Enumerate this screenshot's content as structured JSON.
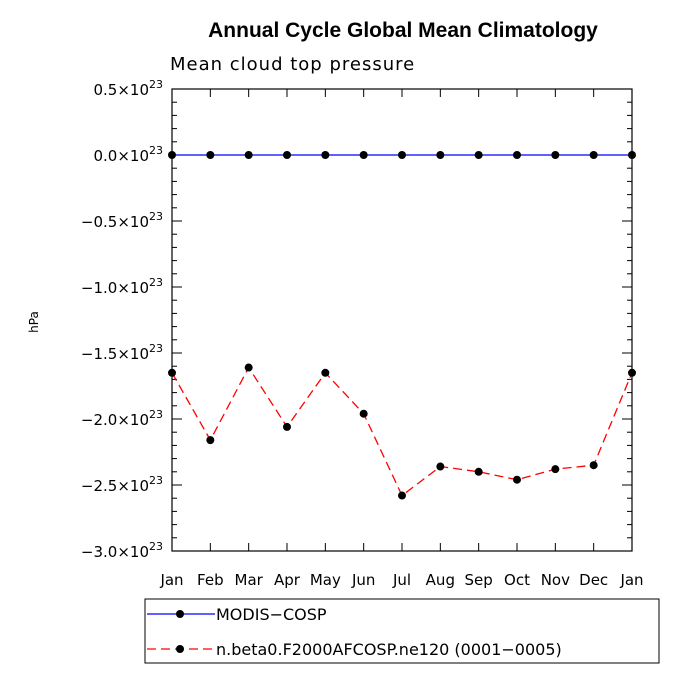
{
  "chart_data": {
    "type": "line",
    "title": "Annual Cycle Global Mean Climatology",
    "subtitle": "Mean cloud top pressure",
    "ylabel": "hPa",
    "xlabel": "",
    "categories": [
      "Jan",
      "Feb",
      "Mar",
      "Apr",
      "May",
      "Jun",
      "Jul",
      "Aug",
      "Sep",
      "Oct",
      "Nov",
      "Dec",
      "Jan"
    ],
    "ylim": [
      -3e+23,
      5e+22
    ],
    "yticks": [
      5e+22,
      0.0,
      -5e+22,
      -1e+23,
      -1.5e+23,
      -2e+23,
      -2.5e+23,
      -3e+23
    ],
    "ytick_labels": [
      {
        "mant": "0.5",
        "exp": "23"
      },
      {
        "mant": "0.0",
        "exp": "23"
      },
      {
        "mant": "−0.5",
        "exp": "23"
      },
      {
        "mant": "−1.0",
        "exp": "23"
      },
      {
        "mant": "−1.5",
        "exp": "23"
      },
      {
        "mant": "−2.0",
        "exp": "23"
      },
      {
        "mant": "−2.5",
        "exp": "23"
      },
      {
        "mant": "−3.0",
        "exp": "23"
      }
    ],
    "series": [
      {
        "name": "MODIS−COSP",
        "color": "#0000ff",
        "dash": false,
        "values": [
          0,
          0,
          0,
          0,
          0,
          0,
          0,
          0,
          0,
          0,
          0,
          0,
          0
        ]
      },
      {
        "name": "n.beta0.F2000AFCOSP.ne120 (0001−0005)",
        "color": "#ff0000",
        "dash": true,
        "values": [
          -1.65e+23,
          -2.16e+23,
          -1.61e+23,
          -2.06e+23,
          -1.65e+23,
          -1.96e+23,
          -2.58e+23,
          -2.36e+23,
          -2.4e+23,
          -2.46e+23,
          -2.38e+23,
          -2.35e+23,
          -1.65e+23
        ]
      }
    ],
    "legend_position": "bottom-left"
  }
}
